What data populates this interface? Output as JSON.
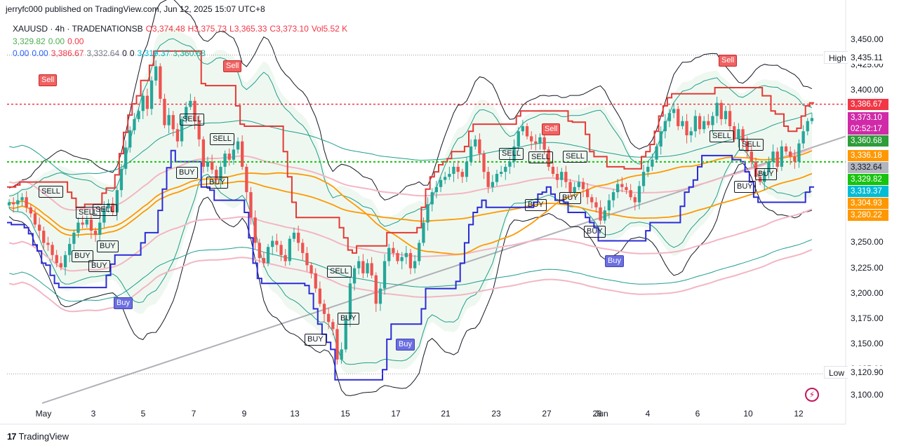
{
  "header": {
    "published_note": "jerryfc000 published on TradingView.com, Jun 12, 2025 15:07 UTC+8"
  },
  "legend": {
    "symbol": "XAUUSD · 4h · TRADENATIONSB",
    "open": "O3,374.48",
    "high": "H3,375.73",
    "low": "L3,365.33",
    "close": "C3,373.10",
    "volume": "Vol5.52 K",
    "row2": [
      "3,329.82",
      "0.00",
      "0.00"
    ],
    "row3": [
      "0.00",
      "0.00",
      "3,386.67",
      "3,332.64",
      "0",
      "0",
      "3,319.37",
      "3,360.68"
    ]
  },
  "footer": {
    "brand": "TradingView"
  },
  "colors": {
    "up": "#26a69a",
    "down": "#ef5350",
    "red_step": "#e53935",
    "blue_step": "#2b2bd6",
    "teal_band": "#1e9e8e",
    "black_band": "#131722",
    "orange_ma": "#ff9800",
    "pink_ma": "#f2b6c4",
    "green_fill": "#e8f5e9",
    "trend": "#b0b0b8",
    "dotted_red": "#f23645",
    "dotted_green": "#17c30e"
  },
  "chart_data": {
    "type": "candlestick",
    "symbol": "XAUUSD",
    "timeframe": "4h",
    "ylim": [
      3090,
      3470
    ],
    "y_ticks": [
      "3,450.00",
      "3,425.00",
      "3,400.00",
      "3,375.00",
      "3,350.00",
      "3,325.00",
      "3,300.00",
      "3,275.00",
      "3,250.00",
      "3,225.00",
      "3,200.00",
      "3,175.00",
      "3,150.00",
      "3,125.00",
      "3,100.00"
    ],
    "x_ticks": [
      "May",
      "3",
      "5",
      "7",
      "9",
      "13",
      "15",
      "17",
      "21",
      "23",
      "27",
      "29",
      "Jun",
      "4",
      "6",
      "10",
      "12"
    ],
    "high_label": "High",
    "high_value": "3,435.11",
    "low_label": "Low",
    "low_value": "3,120.90",
    "price_labels": [
      {
        "value": "3,386.67",
        "price": 3386.67,
        "color": "#f23645"
      },
      {
        "value": "3,373.10",
        "price": 3373.1,
        "color": "#d02aa8",
        "sub": "02:52:17"
      },
      {
        "value": "3,360.68",
        "price": 3360.68,
        "color": "#2e9d3a"
      },
      {
        "value": "3,336.18",
        "price": 3336.18,
        "color": "#ff9800"
      },
      {
        "value": "3,332.64",
        "price": 3332.64,
        "color": "#b2b5be"
      },
      {
        "value": "3,329.82",
        "price": 3329.82,
        "color": "#17c30e"
      },
      {
        "value": "3,319.37",
        "price": 3319.37,
        "color": "#00bcd4"
      },
      {
        "value": "3,304.93",
        "price": 3304.93,
        "color": "#ff9800"
      },
      {
        "value": "3,280.22",
        "price": 3280.22,
        "color": "#ff9800"
      }
    ],
    "closes": [
      3290,
      3288,
      3292,
      3295,
      3285,
      3279,
      3268,
      3262,
      3250,
      3248,
      3238,
      3230,
      3226,
      3238,
      3249,
      3260,
      3270,
      3268,
      3273,
      3262,
      3258,
      3270,
      3284,
      3289,
      3280,
      3302,
      3323,
      3344,
      3361,
      3372,
      3380,
      3395,
      3382,
      3410,
      3424,
      3392,
      3366,
      3376,
      3362,
      3350,
      3372,
      3384,
      3390,
      3370,
      3352,
      3325,
      3330,
      3322,
      3312,
      3325,
      3338,
      3332,
      3342,
      3350,
      3325,
      3300,
      3275,
      3250,
      3235,
      3230,
      3246,
      3252,
      3248,
      3238,
      3232,
      3254,
      3260,
      3250,
      3240,
      3228,
      3220,
      3205,
      3190,
      3180,
      3172,
      3165,
      3135,
      3145,
      3175,
      3210,
      3225,
      3232,
      3220,
      3230,
      3218,
      3190,
      3205,
      3232,
      3245,
      3240,
      3232,
      3236,
      3240,
      3225,
      3232,
      3250,
      3270,
      3288,
      3300,
      3305,
      3312,
      3315,
      3318,
      3325,
      3320,
      3315,
      3330,
      3345,
      3352,
      3338,
      3320,
      3305,
      3310,
      3318,
      3320,
      3325,
      3330,
      3345,
      3360,
      3365,
      3355,
      3350,
      3348,
      3354,
      3342,
      3325,
      3318,
      3312,
      3320,
      3310,
      3300,
      3305,
      3310,
      3303,
      3295,
      3290,
      3285,
      3272,
      3282,
      3292,
      3300,
      3308,
      3305,
      3302,
      3295,
      3290,
      3306,
      3320,
      3325,
      3332,
      3345,
      3360,
      3370,
      3378,
      3382,
      3365,
      3370,
      3356,
      3360,
      3375,
      3362,
      3370,
      3366,
      3375,
      3388,
      3372,
      3380,
      3365,
      3352,
      3362,
      3350,
      3340,
      3330,
      3315,
      3310,
      3320,
      3330,
      3340,
      3325,
      3345,
      3340,
      3335,
      3330,
      3348,
      3360,
      3370,
      3373
    ]
  }
}
